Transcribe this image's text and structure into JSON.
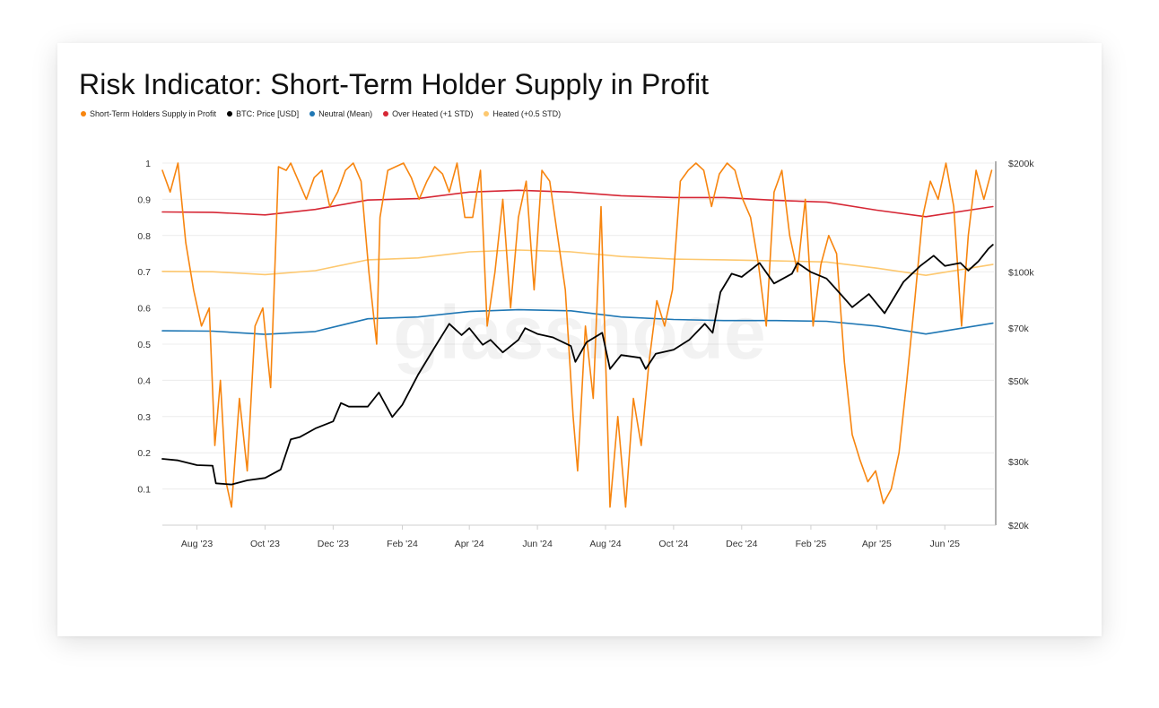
{
  "title": "Risk Indicator: Short-Term Holder Supply in Profit",
  "watermark": "glassnode",
  "colors": {
    "supply": "#f7850f",
    "price": "#000000",
    "neutral": "#1f77b4",
    "over_heated": "#d62735",
    "heated": "#fdc86f"
  },
  "legend": [
    {
      "label": "Short-Term Holders Supply in Profit",
      "color": "#f7850f"
    },
    {
      "label": "BTC: Price [USD]",
      "color": "#000000"
    },
    {
      "label": "Neutral (Mean)",
      "color": "#1f77b4"
    },
    {
      "label": "Over Heated (+1 STD)",
      "color": "#d62735"
    },
    {
      "label": "Heated (+0.5 STD)",
      "color": "#fdc86f"
    }
  ],
  "chart_data": {
    "type": "line",
    "title": "Risk Indicator: Short-Term Holder Supply in Profit",
    "x_range": [
      "2023-07-01",
      "2025-07-15"
    ],
    "x_ticks": [
      "Aug '23",
      "Oct '23",
      "Dec '23",
      "Feb '24",
      "Apr '24",
      "Jun '24",
      "Aug '24",
      "Oct '24",
      "Dec '24",
      "Feb '25",
      "Apr '25",
      "Jun '25"
    ],
    "x_tick_dates": [
      "2023-08-01",
      "2023-10-01",
      "2023-12-01",
      "2024-02-01",
      "2024-04-01",
      "2024-06-01",
      "2024-08-01",
      "2024-10-01",
      "2024-12-01",
      "2025-02-01",
      "2025-04-01",
      "2025-06-01"
    ],
    "y_left": {
      "range": [
        0,
        1
      ],
      "ticks": [
        0.1,
        0.2,
        0.3,
        0.4,
        0.5,
        0.6,
        0.7,
        0.8,
        0.9,
        1
      ],
      "tick_labels": [
        "0.1",
        "0.2",
        "0.3",
        "0.4",
        "0.5",
        "0.6",
        "0.7",
        "0.8",
        "0.9",
        "1"
      ]
    },
    "y_right": {
      "scale": "log",
      "range": [
        20000,
        200000
      ],
      "ticks": [
        20000,
        30000,
        50000,
        70000,
        100000,
        200000
      ],
      "tick_labels": [
        "$20k",
        "$30k",
        "$50k",
        "$70k",
        "$100k",
        "$200k"
      ]
    },
    "grid": "horizontal",
    "series": [
      {
        "name": "Short-Term Holders Supply in Profit",
        "axis": "left",
        "x": [
          "2023-07-01",
          "2023-07-08",
          "2023-07-15",
          "2023-07-22",
          "2023-07-29",
          "2023-08-05",
          "2023-08-12",
          "2023-08-17",
          "2023-08-22",
          "2023-08-27",
          "2023-09-01",
          "2023-09-08",
          "2023-09-15",
          "2023-09-22",
          "2023-09-29",
          "2023-10-06",
          "2023-10-13",
          "2023-10-20",
          "2023-10-24",
          "2023-10-31",
          "2023-11-07",
          "2023-11-14",
          "2023-11-21",
          "2023-11-28",
          "2023-12-05",
          "2023-12-12",
          "2023-12-19",
          "2023-12-26",
          "2024-01-02",
          "2024-01-09",
          "2024-01-12",
          "2024-01-19",
          "2024-01-26",
          "2024-02-02",
          "2024-02-09",
          "2024-02-16",
          "2024-02-23",
          "2024-03-01",
          "2024-03-08",
          "2024-03-14",
          "2024-03-21",
          "2024-03-28",
          "2024-04-04",
          "2024-04-11",
          "2024-04-17",
          "2024-04-24",
          "2024-05-01",
          "2024-05-08",
          "2024-05-15",
          "2024-05-22",
          "2024-05-29",
          "2024-06-05",
          "2024-06-12",
          "2024-06-19",
          "2024-06-26",
          "2024-07-03",
          "2024-07-07",
          "2024-07-14",
          "2024-07-21",
          "2024-07-28",
          "2024-08-05",
          "2024-08-12",
          "2024-08-19",
          "2024-08-26",
          "2024-09-02",
          "2024-09-09",
          "2024-09-16",
          "2024-09-23",
          "2024-09-30",
          "2024-10-07",
          "2024-10-14",
          "2024-10-21",
          "2024-10-28",
          "2024-11-04",
          "2024-11-11",
          "2024-11-18",
          "2024-11-25",
          "2024-12-02",
          "2024-12-09",
          "2024-12-16",
          "2024-12-23",
          "2024-12-30",
          "2025-01-06",
          "2025-01-13",
          "2025-01-20",
          "2025-01-27",
          "2025-02-03",
          "2025-02-10",
          "2025-02-17",
          "2025-02-24",
          "2025-03-03",
          "2025-03-10",
          "2025-03-17",
          "2025-03-24",
          "2025-03-31",
          "2025-04-07",
          "2025-04-14",
          "2025-04-21",
          "2025-04-28",
          "2025-05-05",
          "2025-05-12",
          "2025-05-19",
          "2025-05-26",
          "2025-06-02",
          "2025-06-09",
          "2025-06-16",
          "2025-06-22",
          "2025-06-29",
          "2025-07-06",
          "2025-07-13"
        ],
        "values": [
          0.98,
          0.92,
          1.0,
          0.78,
          0.65,
          0.55,
          0.6,
          0.22,
          0.4,
          0.12,
          0.05,
          0.35,
          0.15,
          0.55,
          0.6,
          0.38,
          0.99,
          0.98,
          1.0,
          0.95,
          0.9,
          0.96,
          0.98,
          0.88,
          0.92,
          0.98,
          1.0,
          0.95,
          0.7,
          0.5,
          0.85,
          0.98,
          0.99,
          1.0,
          0.96,
          0.9,
          0.95,
          0.99,
          0.97,
          0.92,
          1.0,
          0.85,
          0.85,
          0.98,
          0.55,
          0.7,
          0.9,
          0.6,
          0.85,
          0.95,
          0.65,
          0.98,
          0.95,
          0.8,
          0.65,
          0.3,
          0.15,
          0.55,
          0.35,
          0.88,
          0.05,
          0.3,
          0.05,
          0.35,
          0.22,
          0.45,
          0.62,
          0.55,
          0.65,
          0.95,
          0.98,
          1.0,
          0.98,
          0.88,
          0.97,
          1.0,
          0.98,
          0.9,
          0.85,
          0.72,
          0.55,
          0.92,
          0.98,
          0.8,
          0.7,
          0.9,
          0.55,
          0.72,
          0.8,
          0.75,
          0.45,
          0.25,
          0.18,
          0.12,
          0.15,
          0.06,
          0.1,
          0.2,
          0.4,
          0.62,
          0.85,
          0.95,
          0.9,
          1.0,
          0.88,
          0.55,
          0.8,
          0.98,
          0.9,
          0.98
        ]
      },
      {
        "name": "BTC: Price [USD]",
        "axis": "right",
        "x": [
          "2023-07-01",
          "2023-07-15",
          "2023-08-01",
          "2023-08-15",
          "2023-08-18",
          "2023-09-01",
          "2023-09-15",
          "2023-10-01",
          "2023-10-15",
          "2023-10-24",
          "2023-11-01",
          "2023-11-15",
          "2023-12-01",
          "2023-12-08",
          "2023-12-15",
          "2024-01-01",
          "2024-01-11",
          "2024-01-23",
          "2024-02-01",
          "2024-02-15",
          "2024-03-01",
          "2024-03-14",
          "2024-03-25",
          "2024-04-01",
          "2024-04-13",
          "2024-04-20",
          "2024-05-01",
          "2024-05-15",
          "2024-05-21",
          "2024-06-01",
          "2024-06-15",
          "2024-07-01",
          "2024-07-05",
          "2024-07-15",
          "2024-07-29",
          "2024-08-05",
          "2024-08-15",
          "2024-09-01",
          "2024-09-06",
          "2024-09-15",
          "2024-10-01",
          "2024-10-15",
          "2024-10-29",
          "2024-11-05",
          "2024-11-12",
          "2024-11-22",
          "2024-12-01",
          "2024-12-17",
          "2024-12-30",
          "2025-01-15",
          "2025-01-20",
          "2025-02-01",
          "2025-02-15",
          "2025-03-01",
          "2025-03-10",
          "2025-03-25",
          "2025-04-08",
          "2025-04-25",
          "2025-05-10",
          "2025-05-22",
          "2025-06-01",
          "2025-06-15",
          "2025-06-22",
          "2025-07-01",
          "2025-07-10",
          "2025-07-14"
        ],
        "values": [
          30500,
          30200,
          29300,
          29200,
          26100,
          25900,
          26600,
          27000,
          28500,
          34500,
          35000,
          37000,
          38700,
          43500,
          42500,
          42500,
          46500,
          39800,
          43000,
          52000,
          62000,
          72000,
          67000,
          70000,
          63000,
          65000,
          60000,
          65000,
          70000,
          67500,
          66000,
          62500,
          56500,
          64000,
          68000,
          54000,
          59000,
          58000,
          54000,
          59500,
          61000,
          65000,
          72000,
          68000,
          88000,
          99000,
          97000,
          106000,
          93000,
          99000,
          106000,
          100000,
          96000,
          86000,
          80000,
          87000,
          77000,
          94000,
          104000,
          111000,
          104000,
          106000,
          101000,
          107000,
          116000,
          119000
        ]
      },
      {
        "name": "Neutral (Mean)",
        "axis": "left",
        "x": [
          "2023-07-01",
          "2023-08-15",
          "2023-10-01",
          "2023-11-15",
          "2024-01-01",
          "2024-02-15",
          "2024-04-01",
          "2024-05-15",
          "2024-07-01",
          "2024-08-15",
          "2024-10-01",
          "2024-11-15",
          "2025-01-01",
          "2025-02-15",
          "2025-04-01",
          "2025-05-15",
          "2025-07-14"
        ],
        "values": [
          0.537,
          0.536,
          0.527,
          0.535,
          0.57,
          0.575,
          0.59,
          0.595,
          0.592,
          0.575,
          0.568,
          0.565,
          0.565,
          0.563,
          0.55,
          0.528,
          0.558
        ]
      },
      {
        "name": "Over Heated (+1 STD)",
        "axis": "left",
        "x": [
          "2023-07-01",
          "2023-08-15",
          "2023-10-01",
          "2023-11-15",
          "2024-01-01",
          "2024-02-15",
          "2024-04-01",
          "2024-05-15",
          "2024-07-01",
          "2024-08-15",
          "2024-10-01",
          "2024-11-15",
          "2025-01-01",
          "2025-02-15",
          "2025-04-01",
          "2025-05-15",
          "2025-07-14"
        ],
        "values": [
          0.865,
          0.864,
          0.857,
          0.872,
          0.898,
          0.902,
          0.92,
          0.925,
          0.92,
          0.91,
          0.905,
          0.905,
          0.897,
          0.892,
          0.87,
          0.852,
          0.88
        ]
      },
      {
        "name": "Heated (+0.5 STD)",
        "axis": "left",
        "x": [
          "2023-07-01",
          "2023-08-15",
          "2023-10-01",
          "2023-11-15",
          "2024-01-01",
          "2024-02-15",
          "2024-04-01",
          "2024-05-15",
          "2024-07-01",
          "2024-08-15",
          "2024-10-01",
          "2024-11-15",
          "2025-01-01",
          "2025-02-15",
          "2025-04-01",
          "2025-05-15",
          "2025-07-14"
        ],
        "values": [
          0.701,
          0.7,
          0.692,
          0.703,
          0.733,
          0.738,
          0.755,
          0.76,
          0.755,
          0.742,
          0.735,
          0.733,
          0.73,
          0.727,
          0.71,
          0.69,
          0.72
        ]
      }
    ]
  }
}
